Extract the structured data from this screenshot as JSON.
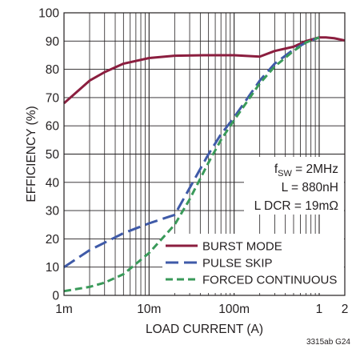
{
  "chart_data": {
    "type": "line",
    "xscale": "log",
    "xlabel": "LOAD CURRENT (A)",
    "ylabel": "EFFICIENCY (%)",
    "xlim": [
      0.001,
      2
    ],
    "ylim": [
      0,
      100
    ],
    "x_tick_labels": [
      "1m",
      "10m",
      "100m",
      "1",
      "2"
    ],
    "x_ticks": [
      0.001,
      0.01,
      0.1,
      1,
      2
    ],
    "y_ticks": [
      0,
      10,
      20,
      30,
      40,
      50,
      60,
      70,
      80,
      90,
      100
    ],
    "grid": true,
    "legend_position": "bottom-right",
    "annotations": [
      "fSW = 2MHz",
      "L = 880nH",
      "L DCR = 19mΩ"
    ],
    "figure_code": "3315ab G24",
    "series": [
      {
        "name": "BURST MODE",
        "color": "#8b1e3f",
        "style": "solid",
        "x": [
          0.001,
          0.002,
          0.003,
          0.005,
          0.01,
          0.02,
          0.05,
          0.1,
          0.2,
          0.3,
          0.5,
          0.7,
          1.0,
          1.2,
          1.5,
          2.0
        ],
        "y": [
          68,
          76,
          79,
          82,
          84,
          84.8,
          85,
          85,
          84.5,
          86.5,
          88,
          90,
          91.3,
          91.3,
          91,
          90.2
        ]
      },
      {
        "name": "PULSE SKIP",
        "color": "#3f5aa8",
        "style": "dashed",
        "x": [
          0.001,
          0.002,
          0.005,
          0.01,
          0.02,
          0.03,
          0.05,
          0.07,
          0.1,
          0.2,
          0.3,
          0.5,
          0.7,
          1.0
        ],
        "y": [
          10,
          16,
          22,
          25.5,
          28.5,
          38,
          50,
          57,
          63,
          76,
          82,
          87,
          89.5,
          91.3
        ]
      },
      {
        "name": "FORCED CONTINUOUS",
        "color": "#3a9a5a",
        "style": "dashed",
        "x": [
          0.001,
          0.002,
          0.003,
          0.005,
          0.01,
          0.02,
          0.03,
          0.05,
          0.07,
          0.1,
          0.2,
          0.3,
          0.5,
          0.7,
          1.0
        ],
        "y": [
          1.5,
          3,
          4.5,
          7.5,
          15,
          25,
          34,
          47,
          55,
          62,
          75,
          81,
          86.5,
          89.5,
          91.3
        ]
      }
    ]
  }
}
